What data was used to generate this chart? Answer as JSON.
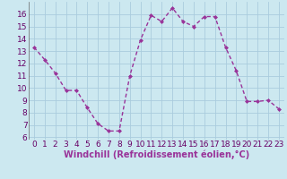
{
  "x": [
    0,
    1,
    2,
    3,
    4,
    5,
    6,
    7,
    8,
    9,
    10,
    11,
    12,
    13,
    14,
    15,
    16,
    17,
    18,
    19,
    20,
    21,
    22,
    23
  ],
  "y": [
    13.3,
    12.3,
    11.2,
    9.8,
    9.8,
    8.4,
    7.1,
    6.5,
    6.5,
    11.0,
    13.9,
    15.9,
    15.4,
    16.5,
    15.4,
    15.0,
    15.8,
    15.8,
    13.3,
    11.4,
    8.9,
    8.9,
    9.0,
    8.3
  ],
  "line_color": "#993399",
  "marker": "D",
  "marker_size": 2.0,
  "line_width": 1.0,
  "bg_color": "#cce8f0",
  "grid_color": "#aaccdd",
  "xlabel": "Windchill (Refroidissement éolien,°C)",
  "xlabel_fontsize": 7,
  "tick_fontsize": 6.5,
  "ylim": [
    5.8,
    17.0
  ],
  "xlim": [
    -0.5,
    23.5
  ],
  "yticks": [
    6,
    7,
    8,
    9,
    10,
    11,
    12,
    13,
    14,
    15,
    16
  ],
  "xticks": [
    0,
    1,
    2,
    3,
    4,
    5,
    6,
    7,
    8,
    9,
    10,
    11,
    12,
    13,
    14,
    15,
    16,
    17,
    18,
    19,
    20,
    21,
    22,
    23
  ]
}
